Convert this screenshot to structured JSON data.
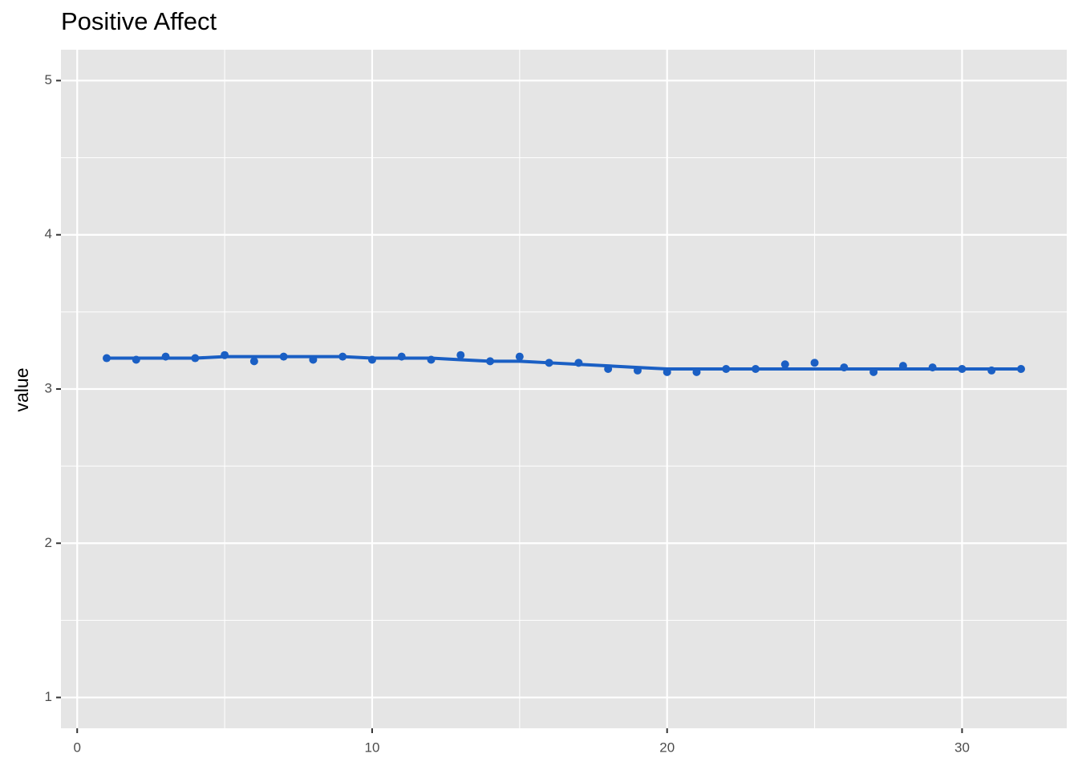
{
  "chart_data": {
    "type": "scatter",
    "title": "Positive Affect",
    "y_label": "value",
    "x": [
      1,
      2,
      3,
      4,
      5,
      6,
      7,
      8,
      9,
      10,
      11,
      12,
      13,
      14,
      15,
      16,
      17,
      18,
      19,
      20,
      21,
      22,
      23,
      24,
      25,
      26,
      27,
      28,
      29,
      30,
      31,
      32
    ],
    "series": [
      {
        "mode": "points",
        "color": "#1a5fc4",
        "values": [
          3.2,
          3.19,
          3.21,
          3.2,
          3.22,
          3.18,
          3.21,
          3.19,
          3.21,
          3.19,
          3.21,
          3.19,
          3.22,
          3.18,
          3.21,
          3.17,
          3.17,
          3.13,
          3.12,
          3.11,
          3.11,
          3.13,
          3.13,
          3.16,
          3.17,
          3.14,
          3.11,
          3.15,
          3.14,
          3.13,
          3.12,
          3.13
        ]
      },
      {
        "mode": "line",
        "color": "#1a5fc4",
        "values": [
          3.2,
          3.2,
          3.2,
          3.2,
          3.21,
          3.21,
          3.21,
          3.21,
          3.21,
          3.2,
          3.2,
          3.2,
          3.19,
          3.18,
          3.18,
          3.17,
          3.16,
          3.15,
          3.14,
          3.13,
          3.13,
          3.13,
          3.13,
          3.13,
          3.13,
          3.13,
          3.13,
          3.13,
          3.13,
          3.13,
          3.13,
          3.13
        ]
      }
    ],
    "xlim": [
      -0.55,
      33.55
    ],
    "xticks": [
      0,
      10,
      20,
      30
    ],
    "ylim": [
      0.8,
      5.2
    ],
    "yticks": [
      1,
      2,
      3,
      4,
      5
    ],
    "grid": true,
    "panel_color": "#e5e5e5"
  }
}
